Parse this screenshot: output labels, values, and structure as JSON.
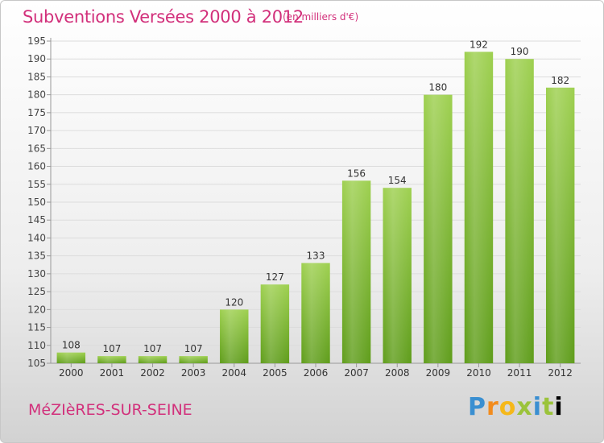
{
  "title": "Subventions Versées 2000 à 2012",
  "subtitle": "(en milliers d'€)",
  "commune": "MéZIèRES-SUR-SEINE",
  "logo": {
    "letters": [
      "P",
      "r",
      "o",
      "x",
      "i",
      "t",
      "i"
    ]
  },
  "colors": {
    "accent": "#d2307b",
    "bar_top": "#9ed050",
    "bar_bottom": "#5f9d1b"
  },
  "chart_data": {
    "type": "bar",
    "categories": [
      "2000",
      "2001",
      "2002",
      "2003",
      "2004",
      "2005",
      "2006",
      "2007",
      "2008",
      "2009",
      "2010",
      "2011",
      "2012"
    ],
    "values": [
      108,
      107,
      107,
      107,
      120,
      127,
      133,
      156,
      154,
      180,
      192,
      190,
      182
    ],
    "ylim": [
      105,
      195
    ],
    "yticks": [
      105,
      110,
      115,
      120,
      125,
      130,
      135,
      140,
      145,
      150,
      155,
      160,
      165,
      170,
      175,
      180,
      185,
      190,
      195
    ],
    "grid": true,
    "legend": "none"
  }
}
